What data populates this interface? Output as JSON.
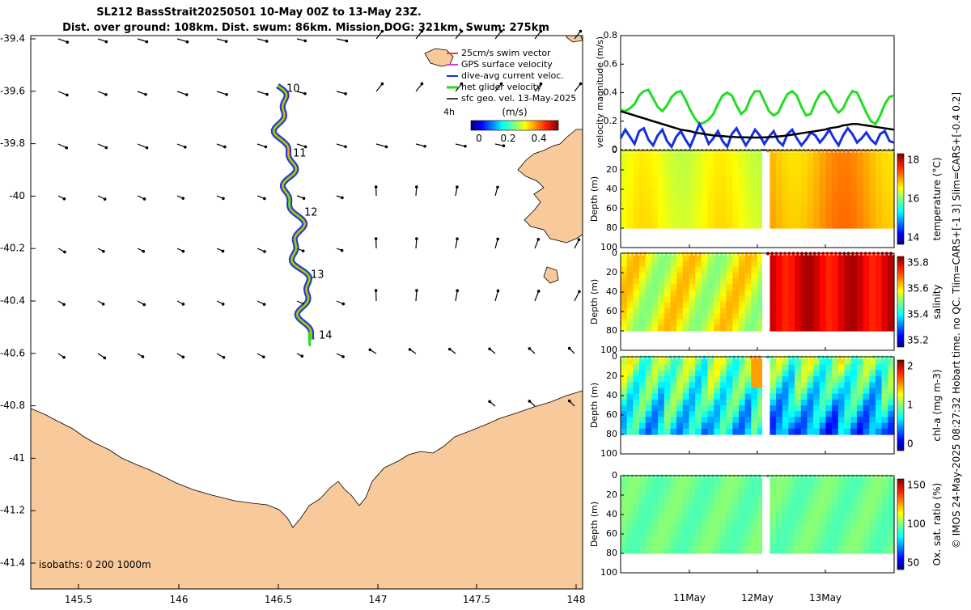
{
  "header": {
    "title_line1": "SL212 BassStrait20250501 10-May 00Z to 13-May 23Z.",
    "title_line2": "Dist. over ground: 108km. Dist. swum: 86km. Mission DOG: 321km. Swum: 275km"
  },
  "colors": {
    "land": "#f8c99b",
    "track": "#ffa500",
    "current": "#0010d0",
    "net_velocity": "#22dd22",
    "gps_velocity": "#cc44cc",
    "swim_vector": "#ff3333",
    "arrows": "#000000"
  },
  "map": {
    "x_ticks": [
      "145.5",
      "146",
      "146.5",
      "147",
      "147.5",
      "148"
    ],
    "y_ticks": [
      "-39.4",
      "-39.6",
      "-39.8",
      "-40",
      "-40.2",
      "-40.4",
      "-40.6",
      "-40.8",
      "-41",
      "-41.2",
      "-41.4"
    ],
    "day_labels": [
      "10",
      "11",
      "12",
      "13",
      "14"
    ],
    "legend": {
      "items": [
        "25cm/s swim vector",
        "GPS surface velocity",
        "dive-avg current veloc.",
        "net glider velocity",
        "sfc geo. vel. 13-May-2025"
      ],
      "interval": "4h",
      "colorbar_title": "(m/s)",
      "colorbar_ticks": [
        "0",
        "0.2",
        "0.4"
      ]
    },
    "isobaths": "isobaths: 0   200  1000m"
  },
  "velocity_panel": {
    "ylabel": "velocity magnitude (m/s)",
    "y_ticks": [
      "0",
      "0.2",
      "0.4",
      "0.6",
      "0.8"
    ],
    "ylim": [
      0,
      0.8
    ],
    "n": 60,
    "series": [
      {
        "name": "net glider velocity",
        "color": "#22dd22",
        "values": [
          0.28,
          0.27,
          0.29,
          0.32,
          0.38,
          0.41,
          0.42,
          0.36,
          0.3,
          0.27,
          0.31,
          0.37,
          0.4,
          0.41,
          0.35,
          0.28,
          0.22,
          0.18,
          0.19,
          0.21,
          0.25,
          0.32,
          0.38,
          0.4,
          0.38,
          0.31,
          0.25,
          0.28,
          0.36,
          0.41,
          0.41,
          0.34,
          0.27,
          0.24,
          0.26,
          0.33,
          0.39,
          0.41,
          0.38,
          0.3,
          0.24,
          0.25,
          0.33,
          0.39,
          0.41,
          0.37,
          0.3,
          0.26,
          0.29,
          0.36,
          0.41,
          0.4,
          0.33,
          0.26,
          0.2,
          0.18,
          0.24,
          0.32,
          0.37,
          0.38
        ]
      },
      {
        "name": "dive-avg current veloc.",
        "color": "#1530e0",
        "values": [
          0.08,
          0.14,
          0.09,
          0.04,
          0.13,
          0.15,
          0.07,
          0.03,
          0.1,
          0.14,
          0.06,
          0.02,
          0.09,
          0.13,
          0.07,
          0.02,
          0.1,
          0.18,
          0.12,
          0.04,
          0.08,
          0.13,
          0.06,
          0.02,
          0.11,
          0.15,
          0.09,
          0.03,
          0.08,
          0.14,
          0.1,
          0.04,
          0.09,
          0.13,
          0.06,
          0.03,
          0.11,
          0.14,
          0.08,
          0.03,
          0.07,
          0.12,
          0.1,
          0.05,
          0.09,
          0.14,
          0.08,
          0.03,
          0.1,
          0.15,
          0.11,
          0.05,
          0.08,
          0.12,
          0.07,
          0.04,
          0.11,
          0.13,
          0.06,
          0.05
        ]
      },
      {
        "name": "sfc geo. vel. 13-May-2025",
        "color": "#000000",
        "values": [
          0.27,
          0.26,
          0.25,
          0.24,
          0.23,
          0.22,
          0.21,
          0.2,
          0.19,
          0.18,
          0.17,
          0.16,
          0.15,
          0.14,
          0.135,
          0.13,
          0.12,
          0.115,
          0.11,
          0.105,
          0.1,
          0.097,
          0.095,
          0.092,
          0.09,
          0.088,
          0.087,
          0.086,
          0.085,
          0.085,
          0.085,
          0.087,
          0.088,
          0.09,
          0.093,
          0.096,
          0.1,
          0.105,
          0.11,
          0.115,
          0.12,
          0.125,
          0.13,
          0.135,
          0.14,
          0.15,
          0.155,
          0.16,
          0.17,
          0.175,
          0.18,
          0.18,
          0.175,
          0.17,
          0.165,
          0.16,
          0.155,
          0.15,
          0.145,
          0.14
        ]
      }
    ]
  },
  "sections": [
    {
      "name": "temperature",
      "cbar_label": "temperature (°C)",
      "cbar_ticks": [
        "14",
        "16",
        "18"
      ]
    },
    {
      "name": "salinity",
      "cbar_label": "salinity",
      "cbar_ticks": [
        "35.2",
        "35.4",
        "35.6",
        "35.8"
      ]
    },
    {
      "name": "chl-a",
      "cbar_label": "chl-a (mg m-3)",
      "cbar_ticks": [
        "0",
        "1",
        "2"
      ]
    },
    {
      "name": "oxygen",
      "cbar_label": "Ox. sat. ratio (%)",
      "cbar_ticks": [
        "50",
        "100",
        "150"
      ]
    }
  ],
  "section_axis": {
    "ylabel": "Depth (m)",
    "y_ticks": [
      "0",
      "20",
      "40",
      "60",
      "80",
      "100"
    ]
  },
  "time_axis": {
    "labels": [
      "11May",
      "12May",
      "13May"
    ]
  },
  "side_note": "© IMOS 24-May-2025 08:27:32 Hobart time. no QC. Tlim=CARS+[-1 3] Slim=CARS+[-0.4 0.2]"
}
